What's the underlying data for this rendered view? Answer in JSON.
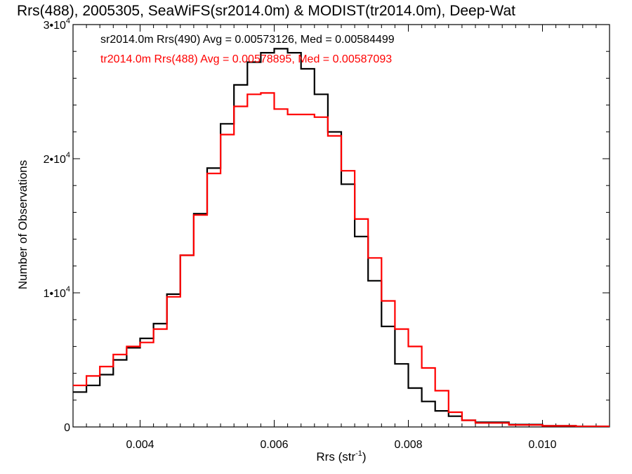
{
  "chart_data": {
    "type": "line",
    "title": "Rrs(488), 2005305, SeaWiFS(sr2014.0m) & MODIST(tr2014.0m), Deep-Wat",
    "xlabel": "Rrs (str",
    "xlabel_sup": "-1",
    "xlabel_close": ")",
    "ylabel": "Number of Observations",
    "xlim": [
      0.003,
      0.011
    ],
    "ylim": [
      0,
      30000
    ],
    "x_ticks": [
      {
        "value": 0.004,
        "label": "0.004"
      },
      {
        "value": 0.006,
        "label": "0.006"
      },
      {
        "value": 0.008,
        "label": "0.008"
      },
      {
        "value": 0.01,
        "label": "0.010"
      }
    ],
    "y_ticks": [
      {
        "value": 0,
        "base": "0",
        "sup": ""
      },
      {
        "value": 10000,
        "base": "1•10",
        "sup": "4"
      },
      {
        "value": 20000,
        "base": "2•10",
        "sup": "4"
      },
      {
        "value": 30000,
        "base": "3•10",
        "sup": "4"
      }
    ],
    "grid": false,
    "annotations": [
      {
        "text": "sr2014.0m Rrs(490) Avg = 0.00573126, Med = 0.00584499",
        "color": "#000000"
      },
      {
        "text": "tr2014.0m Rrs(488) Avg = 0.00578895, Med = 0.00587093",
        "color": "#ff0000"
      }
    ],
    "series": [
      {
        "color": "#000000",
        "x": [
          0.003,
          0.0032,
          0.0034,
          0.0036,
          0.0038,
          0.004,
          0.0042,
          0.0044,
          0.0046,
          0.0048,
          0.005,
          0.0052,
          0.0054,
          0.0056,
          0.0058,
          0.006,
          0.0062,
          0.0064,
          0.0066,
          0.0068,
          0.007,
          0.0072,
          0.0074,
          0.0076,
          0.0078,
          0.008,
          0.0082,
          0.0084,
          0.0086,
          0.0088,
          0.009,
          0.0095,
          0.01,
          0.0105,
          0.011
        ],
        "y": [
          2600,
          3100,
          3900,
          5000,
          5900,
          6600,
          7700,
          9900,
          12800,
          15900,
          19300,
          22600,
          25500,
          27200,
          27900,
          28200,
          27900,
          26700,
          24800,
          22000,
          18100,
          14200,
          10900,
          7500,
          4700,
          2900,
          1900,
          1200,
          800,
          500,
          350,
          180,
          90,
          40,
          20
        ]
      },
      {
        "color": "#ff0000",
        "x": [
          0.003,
          0.0032,
          0.0034,
          0.0036,
          0.0038,
          0.004,
          0.0042,
          0.0044,
          0.0046,
          0.0048,
          0.005,
          0.0052,
          0.0054,
          0.0056,
          0.0058,
          0.006,
          0.0062,
          0.0064,
          0.0066,
          0.0068,
          0.007,
          0.0072,
          0.0074,
          0.0076,
          0.0078,
          0.008,
          0.0082,
          0.0084,
          0.0086,
          0.0088,
          0.009,
          0.0095,
          0.01,
          0.0105,
          0.011
        ],
        "y": [
          3100,
          3800,
          4500,
          5400,
          6000,
          6300,
          7300,
          9700,
          12800,
          15800,
          18900,
          21800,
          23900,
          24800,
          24900,
          23700,
          23300,
          23300,
          23100,
          21700,
          19100,
          15500,
          12600,
          9400,
          7300,
          6000,
          4400,
          2700,
          1100,
          500,
          300,
          150,
          80,
          40,
          20
        ]
      }
    ]
  }
}
